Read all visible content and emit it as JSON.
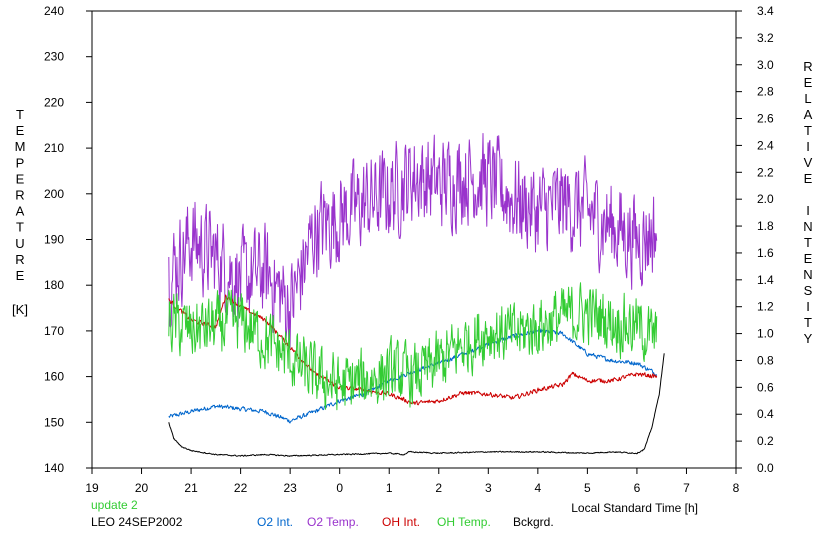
{
  "chart_data": {
    "type": "line",
    "status": "update 2",
    "caption": "LEO 24SEP2002",
    "xlabel": "Local Standard Time [h]",
    "ylabel_left": "TEMPERATURE",
    "ylabel_left_unit": "[K]",
    "ylabel_right": "RELATIVE INTENSITY",
    "xlim": [
      19,
      32
    ],
    "ylim_left": [
      140,
      240
    ],
    "ylim_right": [
      0.0,
      3.4
    ],
    "x_tick_labels": [
      "19",
      "20",
      "21",
      "22",
      "23",
      "0",
      "1",
      "2",
      "3",
      "4",
      "5",
      "6",
      "7",
      "8"
    ],
    "y_left_tick_labels": [
      "140",
      "150",
      "160",
      "170",
      "180",
      "190",
      "200",
      "210",
      "220",
      "230",
      "240"
    ],
    "y_right_tick_labels": [
      "0.0",
      "0.2",
      "0.4",
      "0.6",
      "0.8",
      "1.0",
      "1.2",
      "1.4",
      "1.6",
      "1.8",
      "2.0",
      "2.2",
      "2.4",
      "2.6",
      "2.8",
      "3.0",
      "3.2",
      "3.4"
    ],
    "grid": false,
    "legend_position": "bottom",
    "series": [
      {
        "name": "O2 Int.",
        "axis": "right",
        "color": "#0066cc",
        "noise": 0.015,
        "x": [
          20.55,
          21.0,
          21.5,
          22.0,
          22.5,
          23.0,
          23.5,
          24.0,
          24.5,
          25.0,
          25.5,
          26.0,
          26.5,
          27.0,
          27.5,
          28.0,
          28.5,
          29.0,
          29.5,
          30.0,
          30.4
        ],
        "y": [
          0.38,
          0.42,
          0.46,
          0.44,
          0.42,
          0.35,
          0.42,
          0.5,
          0.55,
          0.65,
          0.72,
          0.78,
          0.85,
          0.92,
          0.98,
          1.02,
          1.0,
          0.85,
          0.8,
          0.78,
          0.7
        ]
      },
      {
        "name": "O2 Temp.",
        "axis": "left",
        "color": "#9933cc",
        "noise": 9,
        "x": [
          20.55,
          21.0,
          21.5,
          22.0,
          22.5,
          23.0,
          23.5,
          24.0,
          24.5,
          25.0,
          25.5,
          26.0,
          26.5,
          27.0,
          27.5,
          28.0,
          28.5,
          29.0,
          29.5,
          30.0,
          30.4
        ],
        "y": [
          182,
          190,
          186,
          181,
          183,
          175,
          192,
          195,
          198,
          200,
          204,
          202,
          204,
          203,
          199,
          196,
          198,
          196,
          193,
          190,
          192
        ]
      },
      {
        "name": "OH Int.",
        "axis": "right",
        "color": "#cc0000",
        "noise": 0.015,
        "x": [
          20.55,
          21.0,
          21.5,
          21.7,
          22.0,
          22.5,
          23.0,
          23.5,
          24.0,
          24.5,
          25.0,
          25.5,
          26.0,
          26.5,
          27.0,
          27.5,
          28.0,
          28.5,
          28.7,
          29.0,
          29.5,
          30.0,
          30.4
        ],
        "y": [
          1.25,
          1.1,
          1.05,
          1.28,
          1.2,
          1.1,
          0.9,
          0.7,
          0.6,
          0.58,
          0.55,
          0.48,
          0.5,
          0.56,
          0.55,
          0.52,
          0.58,
          0.62,
          0.7,
          0.65,
          0.65,
          0.7,
          0.68
        ]
      },
      {
        "name": "OH Temp.",
        "axis": "left",
        "color": "#33cc33",
        "noise": 6,
        "x": [
          20.55,
          21.0,
          21.5,
          22.0,
          22.5,
          23.0,
          23.5,
          24.0,
          24.5,
          25.0,
          25.5,
          26.0,
          26.5,
          27.0,
          27.5,
          28.0,
          28.5,
          29.0,
          29.5,
          30.0,
          30.4
        ],
        "y": [
          172,
          170,
          171,
          172,
          168,
          164,
          160,
          158,
          159,
          161,
          160,
          163,
          167,
          170,
          169,
          171,
          173,
          174,
          172,
          171,
          168
        ]
      },
      {
        "name": "Bckgrd.",
        "axis": "right",
        "color": "#000000",
        "noise": 0.004,
        "x": [
          20.55,
          20.65,
          20.8,
          21.0,
          21.5,
          22.0,
          22.5,
          23.0,
          24.0,
          25.0,
          25.3,
          25.4,
          26.0,
          27.0,
          28.0,
          29.0,
          29.5,
          30.0,
          30.15,
          30.3,
          30.45,
          30.55
        ],
        "y": [
          0.34,
          0.22,
          0.16,
          0.13,
          0.1,
          0.09,
          0.1,
          0.09,
          0.1,
          0.11,
          0.1,
          0.12,
          0.11,
          0.12,
          0.12,
          0.11,
          0.12,
          0.11,
          0.14,
          0.3,
          0.55,
          0.85
        ]
      }
    ]
  }
}
